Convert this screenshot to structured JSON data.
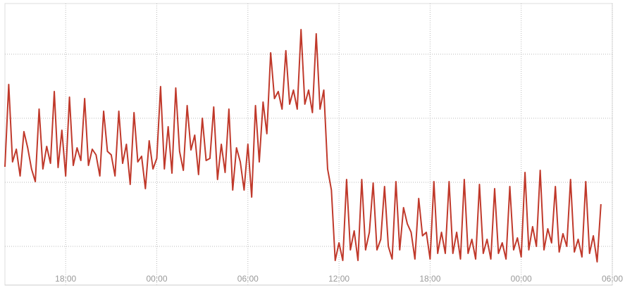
{
  "chart_data": {
    "type": "line",
    "x": [
      0,
      0.25,
      0.5,
      0.75,
      1,
      1.25,
      1.5,
      1.75,
      2,
      2.25,
      2.5,
      2.75,
      3,
      3.25,
      3.5,
      3.75,
      4,
      4.25,
      4.5,
      4.75,
      5,
      5.25,
      5.5,
      5.75,
      6,
      6.25,
      6.5,
      6.75,
      7,
      7.25,
      7.5,
      7.75,
      8,
      8.25,
      8.5,
      8.75,
      9,
      9.25,
      9.5,
      9.75,
      10,
      10.25,
      10.5,
      10.75,
      11,
      11.25,
      11.5,
      11.75,
      12,
      12.25,
      12.5,
      12.75,
      13,
      13.25,
      13.5,
      13.75,
      14,
      14.25,
      14.5,
      14.75,
      15,
      15.25,
      15.5,
      15.75,
      16,
      16.25,
      16.5,
      16.75,
      17,
      17.25,
      17.5,
      17.75,
      18,
      18.25,
      18.5,
      18.75,
      19,
      19.25,
      19.5,
      19.75,
      20,
      20.25,
      20.5,
      20.75,
      21,
      21.25,
      21.5,
      21.75,
      22,
      22.25,
      22.5,
      22.75,
      23,
      23.25,
      23.5,
      23.75,
      24,
      24.25,
      24.5,
      24.75,
      25,
      25.25,
      25.5,
      25.75,
      26,
      26.25,
      26.5,
      26.75,
      27,
      27.25,
      27.5,
      27.75,
      28,
      28.25,
      28.5,
      28.75,
      29,
      29.25,
      29.5,
      29.75,
      30,
      30.25,
      30.5,
      30.75,
      31,
      31.25,
      31.5,
      31.75,
      32,
      32.25,
      32.5,
      32.75,
      33,
      33.25,
      33.5,
      33.75,
      34,
      34.25,
      34.5,
      34.75,
      35,
      35.25,
      35.5,
      35.75,
      36,
      36.25,
      36.5,
      36.75,
      37,
      37.25,
      37.5,
      37.75,
      38,
      38.25,
      38.5,
      38.75,
      39,
      39.25
    ],
    "series": [
      {
        "color": "#c0392b",
        "values": [
          204,
          321,
          211,
          229,
          191,
          254,
          231,
          201,
          183,
          286,
          201,
          233,
          209,
          311,
          203,
          256,
          191,
          303,
          206,
          231,
          213,
          301,
          206,
          229,
          221,
          191,
          283,
          226,
          221,
          191,
          283,
          209,
          236,
          179,
          281,
          211,
          219,
          173,
          241,
          201,
          216,
          318,
          201,
          261,
          195,
          316,
          226,
          199,
          291,
          228,
          249,
          193,
          273,
          213,
          216,
          289,
          186,
          236,
          196,
          286,
          171,
          231,
          211,
          171,
          236,
          161,
          291,
          211,
          296,
          251,
          366,
          301,
          311,
          286,
          369,
          293,
          313,
          286,
          399,
          293,
          313,
          281,
          393,
          286,
          313,
          201,
          171,
          71,
          96,
          71,
          186,
          86,
          113,
          71,
          186,
          86,
          111,
          181,
          86,
          101,
          176,
          91,
          73,
          183,
          86,
          146,
          123,
          111,
          73,
          159,
          106,
          111,
          73,
          183,
          81,
          111,
          81,
          183,
          81,
          111,
          73,
          186,
          81,
          101,
          73,
          179,
          81,
          101,
          73,
          173,
          81,
          96,
          73,
          176,
          86,
          103,
          76,
          196,
          86,
          119,
          91,
          199,
          86,
          116,
          96,
          176,
          83,
          109,
          91,
          186,
          83,
          101,
          76,
          183,
          81,
          106,
          69,
          151
        ]
      }
    ],
    "xlim": [
      0,
      40
    ],
    "xticks": [
      {
        "value": 4,
        "label": "18:00"
      },
      {
        "value": 10,
        "label": "00:00"
      },
      {
        "value": 16,
        "label": "06:00"
      },
      {
        "value": 22,
        "label": "12:00"
      },
      {
        "value": 28,
        "label": "18:00"
      },
      {
        "value": 34,
        "label": "00:00"
      },
      {
        "value": 40,
        "label": "06:00"
      }
    ],
    "ylim": [
      36,
      436
    ],
    "yticks": [
      91,
      182,
      273,
      364
    ],
    "grid": true
  }
}
